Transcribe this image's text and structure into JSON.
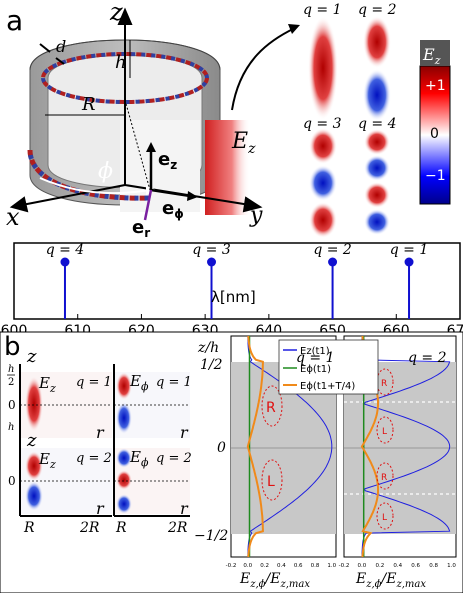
{
  "panel_a": {
    "label": "a",
    "axes": {
      "x": "x",
      "y": "y",
      "z": "z"
    },
    "dims": {
      "d": "d",
      "h": "h",
      "R": "R",
      "phi": "ϕ"
    },
    "unit_vectors": {
      "ez": "e",
      "ez_sub": "z",
      "ephi": "e",
      "ephi_sub": "ϕ",
      "er": "e",
      "er_sub": "r"
    },
    "field_label": {
      "main": "E",
      "sub": "z"
    },
    "colorbar": {
      "title_main": "E",
      "title_sub": "z",
      "ticks": [
        "+1",
        "0",
        "−1"
      ]
    },
    "modes": [
      {
        "label": "q = 1",
        "q": 1
      },
      {
        "label": "q = 2",
        "q": 2
      },
      {
        "label": "q = 3",
        "q": 3
      },
      {
        "label": "q = 4",
        "q": 4
      }
    ]
  },
  "spectrum": {
    "xlabel": "λ[nm]",
    "ticks": [
      "600",
      "610",
      "620",
      "630",
      "640",
      "650",
      "660",
      "670"
    ],
    "lines": [
      {
        "label": "q = 4",
        "lambda": 608
      },
      {
        "label": "q = 3",
        "lambda": 631
      },
      {
        "label": "q = 2",
        "lambda": 650
      },
      {
        "label": "q = 1",
        "lambda": 662
      }
    ]
  },
  "panel_b": {
    "label": "b",
    "maps": [
      {
        "field": "E",
        "sub": "z",
        "q": "q = 1"
      },
      {
        "field": "E",
        "sub": "ϕ",
        "q": "q = 1"
      },
      {
        "field": "E",
        "sub": "z",
        "q": "q = 2"
      },
      {
        "field": "E",
        "sub": "ϕ",
        "q": "q = 2"
      }
    ],
    "map_axes": {
      "z": "z",
      "r": "r",
      "h_half": "h",
      "two": "2",
      "zero": "0",
      "minus": "−",
      "R": "R",
      "twoR": "2R"
    },
    "profile_axes": {
      "ylabel": "z/h",
      "yticks": [
        "1/2",
        "0",
        "−1/2"
      ],
      "xticks": [
        "-0.2",
        "0.0",
        "0.2",
        "0.4",
        "0.6",
        "0.8",
        "1.0"
      ],
      "xlabel": "E",
      "xlabel_sub": "z,ϕ",
      "xlabel_den": "/E",
      "xlabel_den_sub": "z,max"
    },
    "legend": [
      "E_z(t1)",
      "E_ϕ(t1)",
      "E_ϕ(t1+T/4)"
    ],
    "legend_display": [
      "Ez(t1)",
      "Eϕ(t1)",
      "Eϕ(t1+T/4)"
    ],
    "profile_q": [
      "q = 1",
      "q = 2"
    ],
    "rotation_labels": {
      "q1": [
        "R",
        "L"
      ],
      "q2": [
        "R",
        "L",
        "R",
        "L"
      ]
    },
    "colors": {
      "Ez": "#1f1fe0",
      "Ephi": "#1f8a1f",
      "Ephi_T4": "#f08a1a",
      "rotation": "#e01010"
    }
  }
}
